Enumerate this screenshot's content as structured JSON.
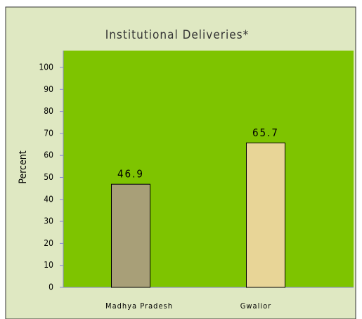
{
  "chart_data": {
    "type": "bar",
    "title": "Institutional Deliveries*",
    "ylabel": "Percent",
    "categories": [
      "Madhya Pradesh",
      "Gwalior"
    ],
    "values": [
      46.9,
      65.7
    ],
    "colors": [
      "#a89f78",
      "#e8d597"
    ],
    "ylim": [
      0,
      100
    ],
    "yticks": [
      0,
      10,
      20,
      30,
      40,
      50,
      60,
      70,
      80,
      90,
      100
    ]
  }
}
